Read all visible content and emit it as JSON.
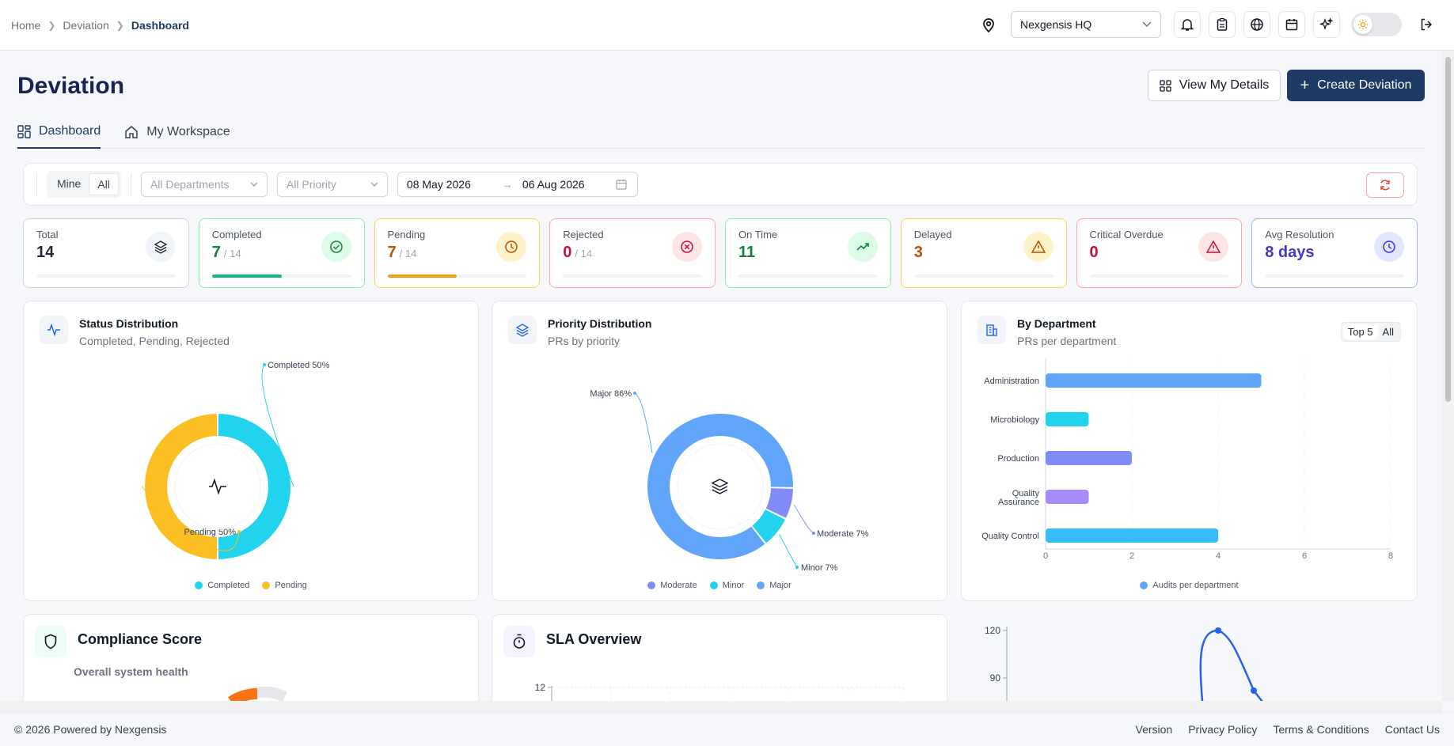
{
  "breadcrumb": {
    "items": [
      "Home",
      "Deviation"
    ],
    "current": "Dashboard"
  },
  "header": {
    "site_select": "Nexgensis HQ"
  },
  "page": {
    "title": "Deviation",
    "view_details": "View My Details",
    "create": "Create Deviation",
    "tabs": [
      {
        "label": "Dashboard",
        "icon": "grid-icon"
      },
      {
        "label": "My Workspace",
        "icon": "home-icon"
      }
    ]
  },
  "filters": {
    "scope": [
      "Mine",
      "All"
    ],
    "scope_selected": "All",
    "department_placeholder": "All Departments",
    "priority_placeholder": "All Priority",
    "date_from": "08 May 2026",
    "date_to": "06 Aug 2026"
  },
  "stats": [
    {
      "label": "Total",
      "value": "14",
      "total": "",
      "fraction": 0,
      "color": "#1f2937",
      "icon": "layers-icon",
      "icon_bg": "#f1f5f9",
      "border": "#cbd5e1",
      "bar": "#cbd5e1"
    },
    {
      "label": "Completed",
      "value": "7",
      "total": "/ 14",
      "fraction": 0.5,
      "color": "#15803d",
      "icon": "check-circle-icon",
      "icon_bg": "#dcfce7",
      "border": "#86efac",
      "bar": "#10b981"
    },
    {
      "label": "Pending",
      "value": "7",
      "total": "/ 14",
      "fraction": 0.5,
      "color": "#b45309",
      "icon": "clock-icon",
      "icon_bg": "#fef3c7",
      "border": "#fcd34d",
      "bar": "#f59e0b"
    },
    {
      "label": "Rejected",
      "value": "0",
      "total": "/ 14",
      "fraction": 0,
      "color": "#be123c",
      "icon": "x-circle-icon",
      "icon_bg": "#ffe4e6",
      "border": "#fda4af",
      "bar": "#f43f5e"
    },
    {
      "label": "On Time",
      "value": "11",
      "total": "",
      "fraction": 0,
      "color": "#15803d",
      "icon": "trend-up-icon",
      "icon_bg": "#dcfce7",
      "border": "#86efac",
      "bar": "#10b981"
    },
    {
      "label": "Delayed",
      "value": "3",
      "total": "",
      "fraction": 0,
      "color": "#b45309",
      "icon": "warning-icon",
      "icon_bg": "#fef3c7",
      "border": "#fcd34d",
      "bar": "#f59e0b"
    },
    {
      "label": "Critical Overdue",
      "value": "0",
      "total": "",
      "fraction": 0,
      "color": "#be123c",
      "icon": "alert-triangle-icon",
      "icon_bg": "#ffe4e6",
      "border": "#fda4af",
      "bar": "#f43f5e"
    },
    {
      "label": "Avg Resolution",
      "value": "8 days",
      "total": "",
      "fraction": 0,
      "color": "#4338ca",
      "icon": "clock-icon",
      "icon_bg": "#e0e7ff",
      "border": "#a5b4fc",
      "bar": "#6366f1"
    }
  ],
  "cards": {
    "status": {
      "title": "Status Distribution",
      "subtitle": "Completed, Pending, Rejected"
    },
    "priority": {
      "title": "Priority Distribution",
      "subtitle": "PRs by priority"
    },
    "department": {
      "title": "By Department",
      "subtitle": "PRs per department",
      "toggle": [
        "Top 5",
        "All"
      ]
    },
    "compliance": {
      "title": "Compliance Score",
      "subtitle": "Overall system health"
    },
    "sla": {
      "title": "SLA Overview"
    }
  },
  "chart_data": [
    {
      "type": "pie",
      "title": "Status Distribution",
      "slices": [
        {
          "name": "Completed",
          "value": 50,
          "label": "Completed 50%",
          "color": "#22d3ee"
        },
        {
          "name": "Pending",
          "value": 50,
          "label": "Pending 50%",
          "color": "#fbbf24"
        }
      ]
    },
    {
      "type": "pie",
      "title": "Priority Distribution",
      "slices": [
        {
          "name": "Major",
          "value": 86,
          "label": "Major 86%",
          "color": "#60a5fa"
        },
        {
          "name": "Minor",
          "value": 7,
          "label": "Minor 7%",
          "color": "#22d3ee"
        },
        {
          "name": "Moderate",
          "value": 7,
          "label": "Moderate 7%",
          "color": "#818cf8"
        }
      ]
    },
    {
      "type": "bar",
      "orientation": "horizontal",
      "title": "By Department",
      "categories": [
        "Administration",
        "Microbiology",
        "Production",
        "Quality Assurance",
        "Quality Control"
      ],
      "values": [
        5,
        1,
        2,
        1,
        4
      ],
      "colors": [
        "#60a5fa",
        "#22d3ee",
        "#818cf8",
        "#a78bfa",
        "#38bdf8"
      ],
      "xlim": [
        0,
        8
      ],
      "xticks": [
        0,
        2,
        4,
        6,
        8
      ],
      "legend": "Audits per department"
    },
    {
      "type": "line",
      "title": "SLA Overview",
      "yticks": [
        12
      ]
    },
    {
      "type": "line",
      "yticks": [
        120,
        90
      ],
      "points": [
        {
          "y": 120
        },
        {
          "y": 82
        }
      ]
    }
  ],
  "footer": {
    "copyright": "© 2026 Powered by Nexgensis",
    "links": [
      "Version",
      "Privacy Policy",
      "Terms & Conditions",
      "Contact Us"
    ]
  }
}
